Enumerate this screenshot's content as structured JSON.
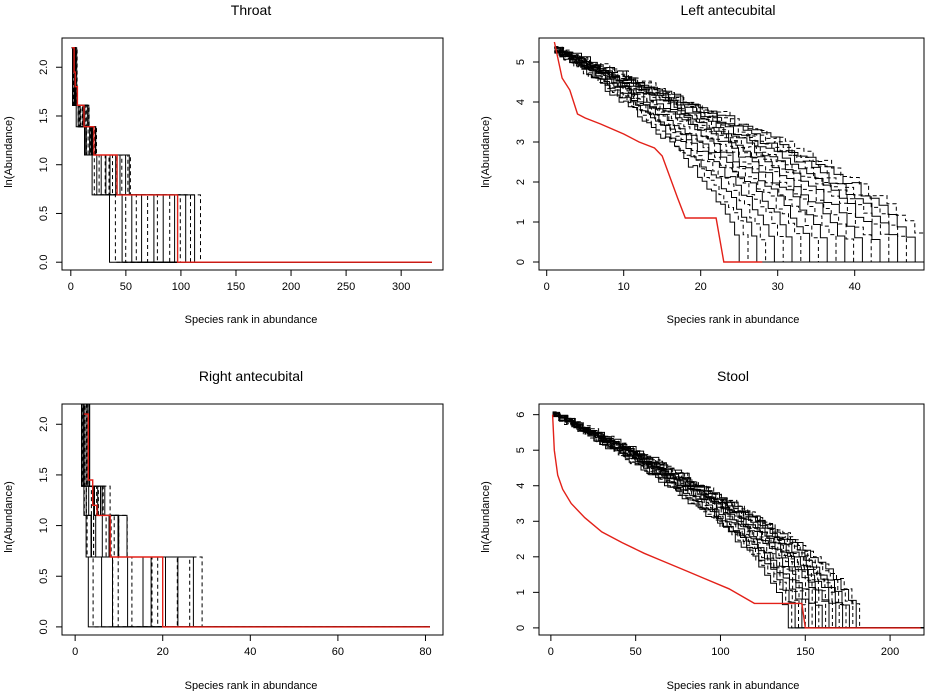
{
  "figure": {
    "panels": [
      "Throat",
      "Left antecubital",
      "Right antecubital",
      "Stool"
    ]
  },
  "colors": {
    "observed": "#e32119",
    "simulated": "#000000",
    "axes": "#000000",
    "background": "#ffffff"
  },
  "chart_data": [
    {
      "type": "line",
      "title": "Throat",
      "xlabel": "Species rank in abundance",
      "ylabel": "ln(Abundance)",
      "xlim": [
        -8,
        338
      ],
      "ylim": [
        -0.08,
        2.3
      ],
      "xticks": [
        0,
        50,
        100,
        150,
        200,
        250,
        300
      ],
      "yticks": [
        0.0,
        0.5,
        1.0,
        1.5,
        2.0
      ],
      "ytick_labels": [
        "0.0",
        "0.5",
        "1.0",
        "1.5",
        "2.0"
      ],
      "grid": false,
      "series": [
        {
          "style": "observed-solid-red",
          "x": [
            1,
            3,
            4,
            6,
            12,
            19,
            21,
            41,
            42,
            95,
            97,
            328
          ],
          "y": [
            2.2,
            1.95,
            1.8,
            1.61,
            1.39,
            1.39,
            1.1,
            1.1,
            0.69,
            0.69,
            0.0,
            0.0
          ]
        }
      ],
      "simulated_envelope": {
        "style": "dashed-and-solid-black",
        "count": 18,
        "steps": [
          {
            "y": 2.2,
            "x_range": [
              1,
              5
            ]
          },
          {
            "y": 1.61,
            "x_range": [
              5,
              17
            ]
          },
          {
            "y": 1.39,
            "x_range": [
              12,
              24
            ]
          },
          {
            "y": 1.1,
            "x_range": [
              20,
              55
            ]
          },
          {
            "y": 0.69,
            "x_range": [
              36,
              118
            ]
          },
          {
            "y": 0.0,
            "x_range": [
              90,
              328
            ]
          }
        ]
      }
    },
    {
      "type": "line",
      "title": "Left antecubital",
      "xlabel": "Species rank in abundance",
      "ylabel": "ln(Abundance)",
      "xlim": [
        -1,
        49
      ],
      "ylim": [
        -0.2,
        5.6
      ],
      "xticks": [
        0,
        10,
        20,
        30,
        40
      ],
      "yticks": [
        0,
        1,
        2,
        3,
        4,
        5
      ],
      "ytick_labels": [
        "0",
        "1",
        "2",
        "3",
        "4",
        "5"
      ],
      "grid": false,
      "series": [
        {
          "style": "observed-solid-red",
          "x": [
            1,
            2,
            3,
            4,
            5,
            7,
            10,
            12,
            14,
            15,
            17,
            18,
            20,
            22,
            23,
            28
          ],
          "y": [
            5.5,
            4.6,
            4.3,
            3.7,
            3.6,
            3.45,
            3.2,
            3.0,
            2.85,
            2.65,
            1.6,
            1.1,
            1.1,
            1.1,
            0.0,
            0.0
          ]
        }
      ],
      "simulated_envelope": {
        "style": "dashed-and-solid-black",
        "count": 22,
        "endpoint_rank_range": [
          25,
          49
        ]
      }
    },
    {
      "type": "line",
      "title": "Right antecubital",
      "xlabel": "Species rank in abundance",
      "ylabel": "ln(Abundance)",
      "xlim": [
        -3,
        84
      ],
      "ylim": [
        -0.08,
        2.2
      ],
      "xticks": [
        0,
        20,
        40,
        60,
        80
      ],
      "yticks": [
        0.0,
        0.5,
        1.0,
        1.5,
        2.0
      ],
      "ytick_labels": [
        "0.0",
        "0.5",
        "1.0",
        "1.5",
        "2.0"
      ],
      "grid": false,
      "series": [
        {
          "style": "observed-solid-red",
          "x": [
            2,
            3,
            3,
            4,
            5,
            7,
            8,
            19,
            20,
            81
          ],
          "y": [
            2.1,
            1.7,
            1.45,
            1.2,
            1.1,
            1.1,
            0.69,
            0.69,
            0.0,
            0.0
          ]
        }
      ],
      "simulated_envelope": {
        "style": "dashed-and-solid-black",
        "count": 18,
        "steps": [
          {
            "y": 2.2,
            "x_range": [
              1,
              3
            ]
          },
          {
            "y": 1.39,
            "x_range": [
              2,
              7
            ]
          },
          {
            "y": 1.1,
            "x_range": [
              2,
              12
            ]
          },
          {
            "y": 0.69,
            "x_range": [
              3,
              29
            ]
          },
          {
            "y": 0.0,
            "x_range": [
              16,
              81
            ]
          }
        ]
      }
    },
    {
      "type": "line",
      "title": "Stool",
      "xlabel": "Species rank in abundance",
      "ylabel": "ln(Abundance)",
      "xlim": [
        -7,
        220
      ],
      "ylim": [
        -0.2,
        6.3
      ],
      "xticks": [
        0,
        50,
        100,
        150,
        200
      ],
      "yticks": [
        0,
        1,
        2,
        3,
        4,
        5,
        6
      ],
      "ytick_labels": [
        "0",
        "1",
        "2",
        "3",
        "4",
        "5",
        "6"
      ],
      "grid": false,
      "series": [
        {
          "style": "observed-solid-red",
          "x": [
            1,
            2,
            4,
            7,
            12,
            20,
            30,
            42,
            55,
            65,
            80,
            90,
            105,
            120,
            140,
            148,
            150,
            218
          ],
          "y": [
            6.0,
            5.0,
            4.3,
            3.9,
            3.5,
            3.1,
            2.7,
            2.4,
            2.1,
            1.9,
            1.6,
            1.4,
            1.1,
            0.69,
            0.69,
            0.69,
            0.0,
            0.0
          ]
        }
      ],
      "simulated_envelope": {
        "style": "dashed-and-solid-black",
        "count": 22,
        "endpoint_rank_range": [
          140,
          182
        ]
      }
    }
  ]
}
